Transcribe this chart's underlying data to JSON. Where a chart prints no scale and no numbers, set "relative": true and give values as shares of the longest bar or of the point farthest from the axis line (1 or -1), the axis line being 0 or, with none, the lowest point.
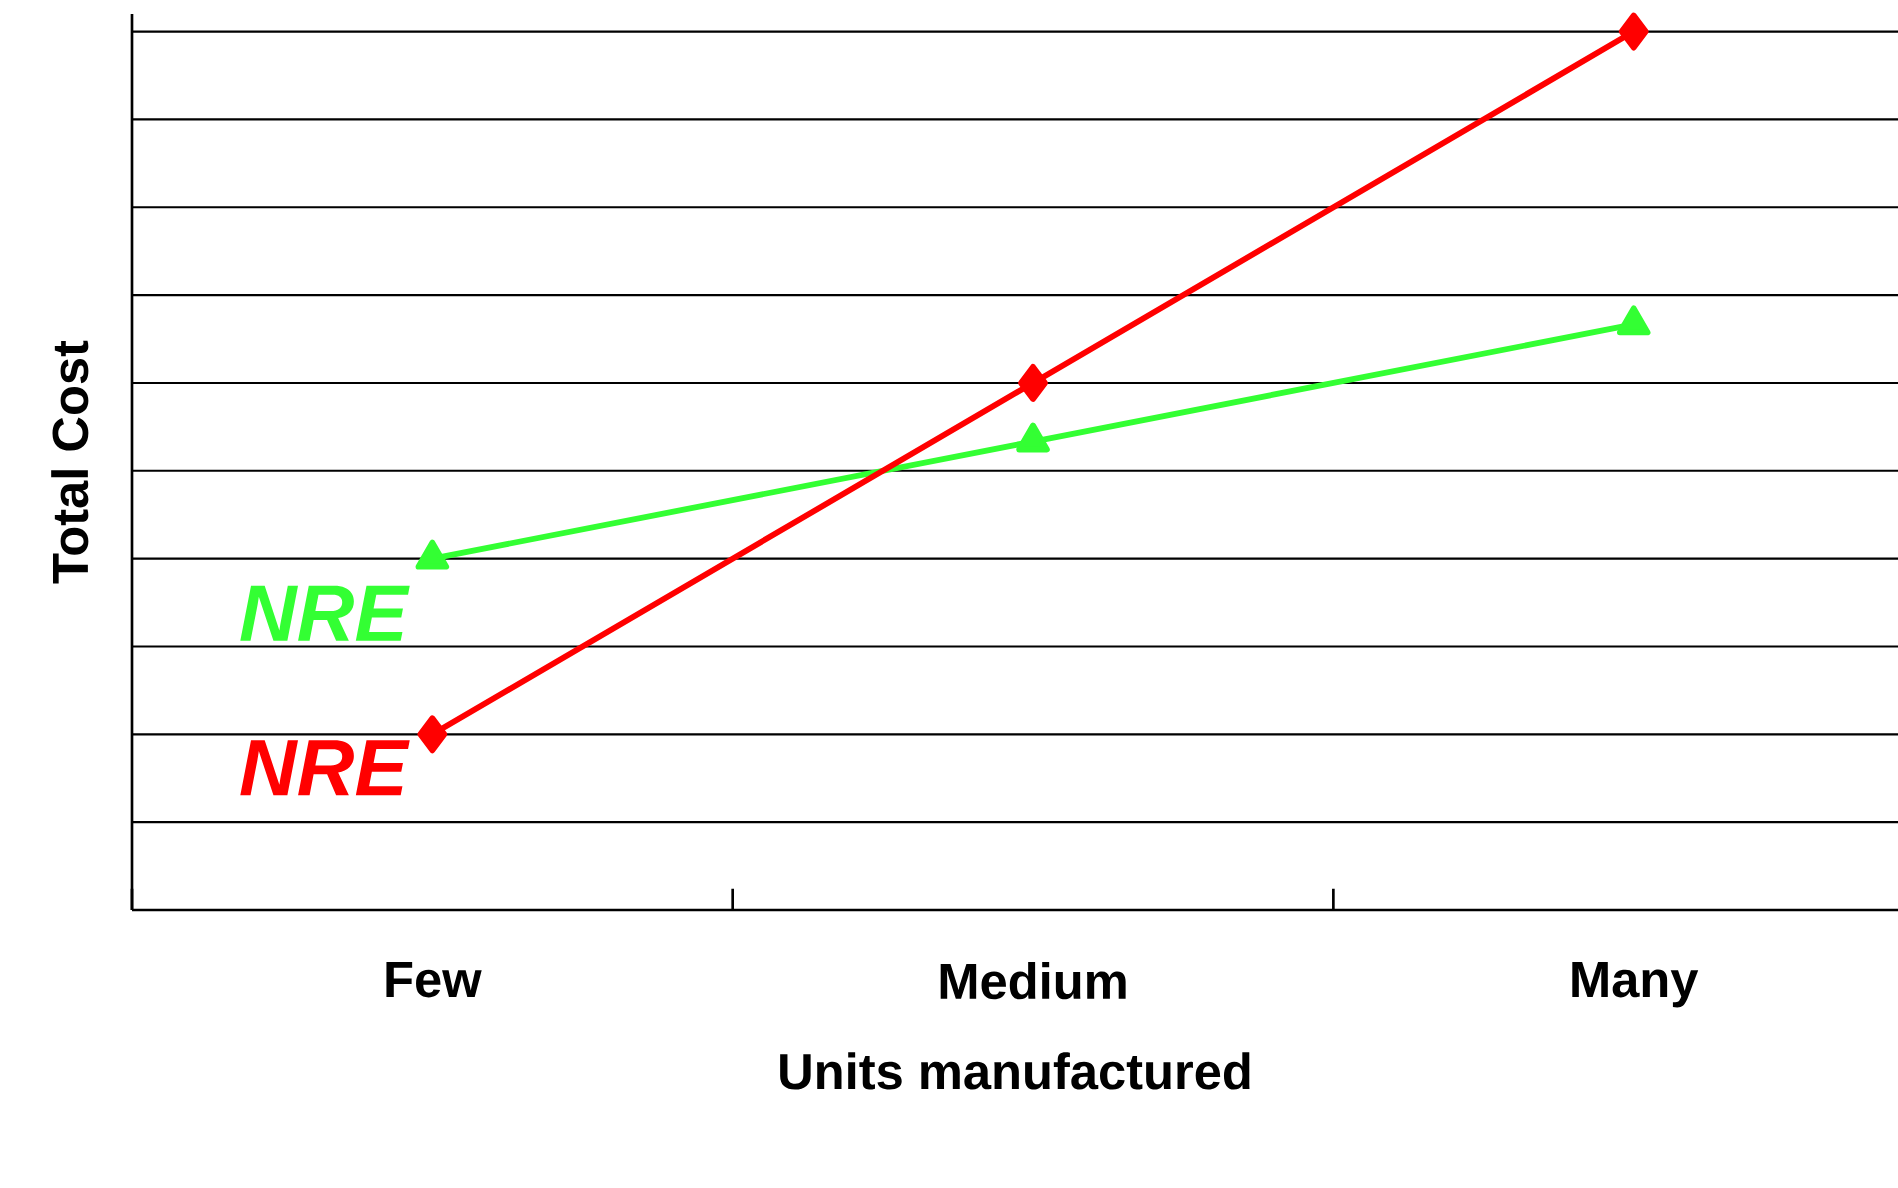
{
  "chart_data": {
    "type": "line",
    "relative": true,
    "xlabel": "Units manufactured",
    "ylabel": "Total Cost",
    "categories": [
      "Few",
      "Medium",
      "Many"
    ],
    "grid": "y",
    "line_style": "solid",
    "series": [
      {
        "name": "NRE",
        "color": "#33ff33",
        "marker": "triangle",
        "values": [
          0.4,
          0.5333,
          0.6667
        ]
      },
      {
        "name": "NRE",
        "color": "#ff0000",
        "marker": "diamond",
        "values": [
          0.2,
          0.6,
          1
        ]
      }
    ]
  }
}
